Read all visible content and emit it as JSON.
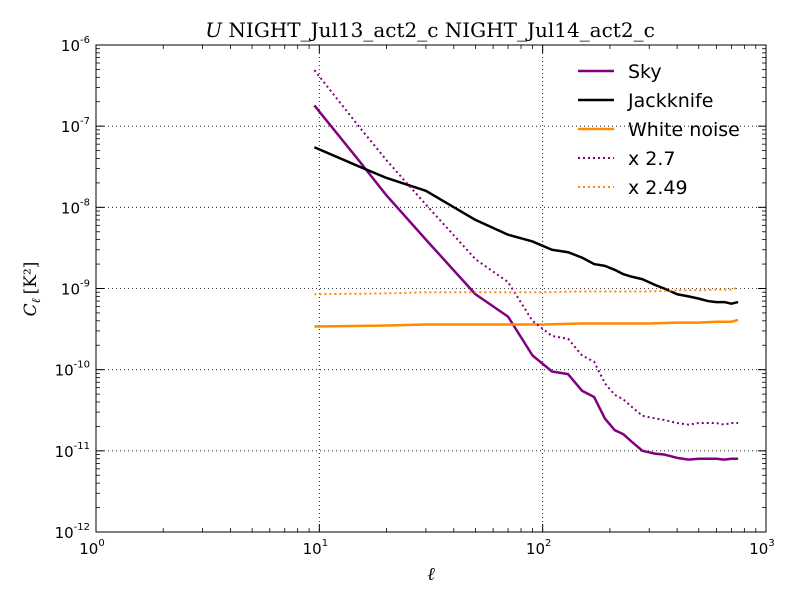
{
  "chart_data": {
    "type": "line",
    "title": {
      "prefix": "U",
      "text": " NIGHT_Jul13_act2_c NIGHT_Jul14_act2_c"
    },
    "xlabel": "ℓ",
    "ylabel": {
      "symbol": "C",
      "subscript": "ℓ",
      "units": "[K²]"
    },
    "x_scale": "log",
    "y_scale": "log",
    "xlim": [
      1,
      1000
    ],
    "ylim": [
      1e-12,
      1e-06
    ],
    "x_ticks": [
      {
        "value": 1,
        "base": "10",
        "exp": "0"
      },
      {
        "value": 10,
        "base": "10",
        "exp": "1"
      },
      {
        "value": 100,
        "base": "10",
        "exp": "2"
      },
      {
        "value": 1000,
        "base": "10",
        "exp": "3"
      }
    ],
    "y_ticks": [
      {
        "value": 1e-12,
        "base": "10",
        "exp": "-12"
      },
      {
        "value": 1e-11,
        "base": "10",
        "exp": "-11"
      },
      {
        "value": 1e-10,
        "base": "10",
        "exp": "-10"
      },
      {
        "value": 1e-09,
        "base": "10",
        "exp": "-9"
      },
      {
        "value": 1e-08,
        "base": "10",
        "exp": "-8"
      },
      {
        "value": 1e-07,
        "base": "10",
        "exp": "-7"
      },
      {
        "value": 1e-06,
        "base": "10",
        "exp": "-6"
      }
    ],
    "grid": true,
    "legend_position": "top-right",
    "series": [
      {
        "name": "Sky",
        "color": "#800080",
        "style": "solid",
        "x": [
          9.5,
          15,
          20,
          30,
          50,
          70,
          90,
          110,
          130,
          150,
          170,
          190,
          210,
          230,
          250,
          280,
          320,
          350,
          400,
          450,
          500,
          550,
          600,
          650,
          700,
          750
        ],
        "y": [
          1.8e-07,
          3.8e-08,
          1.4e-08,
          4e-09,
          8.5e-10,
          4.5e-10,
          1.5e-10,
          9.5e-11,
          8.8e-11,
          5.5e-11,
          4.6e-11,
          2.5e-11,
          1.8e-11,
          1.6e-11,
          1.3e-11,
          1e-11,
          9.2e-12,
          9e-12,
          8.2e-12,
          7.8e-12,
          8e-12,
          8e-12,
          8e-12,
          7.8e-12,
          8e-12,
          8e-12
        ]
      },
      {
        "name": "Jackknife",
        "color": "#000000",
        "style": "solid",
        "x": [
          9.5,
          15,
          20,
          30,
          50,
          70,
          90,
          110,
          130,
          150,
          170,
          190,
          210,
          230,
          250,
          280,
          320,
          350,
          400,
          450,
          500,
          550,
          600,
          650,
          700,
          750
        ],
        "y": [
          5.5e-08,
          3.2e-08,
          2.3e-08,
          1.6e-08,
          7e-09,
          4.6e-09,
          3.8e-09,
          3e-09,
          2.8e-09,
          2.4e-09,
          2e-09,
          1.9e-09,
          1.7e-09,
          1.5e-09,
          1.4e-09,
          1.3e-09,
          1.1e-09,
          1e-09,
          8.5e-10,
          8e-10,
          7.5e-10,
          7e-10,
          6.8e-10,
          6.8e-10,
          6.5e-10,
          6.8e-10
        ]
      },
      {
        "name": "White noise",
        "color": "#FF8C00",
        "style": "solid",
        "x": [
          9.5,
          20,
          30,
          50,
          70,
          100,
          150,
          200,
          300,
          400,
          500,
          600,
          700,
          750
        ],
        "y": [
          3.4e-10,
          3.5e-10,
          3.6e-10,
          3.6e-10,
          3.6e-10,
          3.6e-10,
          3.7e-10,
          3.7e-10,
          3.7e-10,
          3.8e-10,
          3.8e-10,
          3.9e-10,
          3.9e-10,
          4.1e-10
        ]
      },
      {
        "name": "x 2.7",
        "color": "#800080",
        "style": "dotted",
        "x": [
          9.5,
          15,
          20,
          30,
          50,
          70,
          90,
          110,
          130,
          150,
          170,
          190,
          210,
          230,
          250,
          280,
          320,
          350,
          400,
          450,
          500,
          550,
          600,
          650,
          700,
          750
        ],
        "y": [
          4.9e-07,
          1e-07,
          3.8e-08,
          1.08e-08,
          2.3e-09,
          1.2e-09,
          4e-10,
          2.6e-10,
          2.4e-10,
          1.5e-10,
          1.25e-10,
          6.8e-11,
          4.9e-11,
          4.3e-11,
          3.5e-11,
          2.7e-11,
          2.5e-11,
          2.4e-11,
          2.2e-11,
          2.1e-11,
          2.2e-11,
          2.2e-11,
          2.2e-11,
          2.1e-11,
          2.2e-11,
          2.2e-11
        ]
      },
      {
        "name": "x 2.49",
        "color": "#FF8C00",
        "style": "dotted",
        "x": [
          9.5,
          20,
          30,
          50,
          70,
          100,
          150,
          200,
          300,
          400,
          500,
          600,
          700,
          750
        ],
        "y": [
          8.5e-10,
          8.7e-10,
          9e-10,
          9e-10,
          9e-10,
          9e-10,
          9.2e-10,
          9.2e-10,
          9.2e-10,
          9.5e-10,
          9.5e-10,
          9.7e-10,
          9.7e-10,
          1.02e-09
        ]
      }
    ]
  }
}
